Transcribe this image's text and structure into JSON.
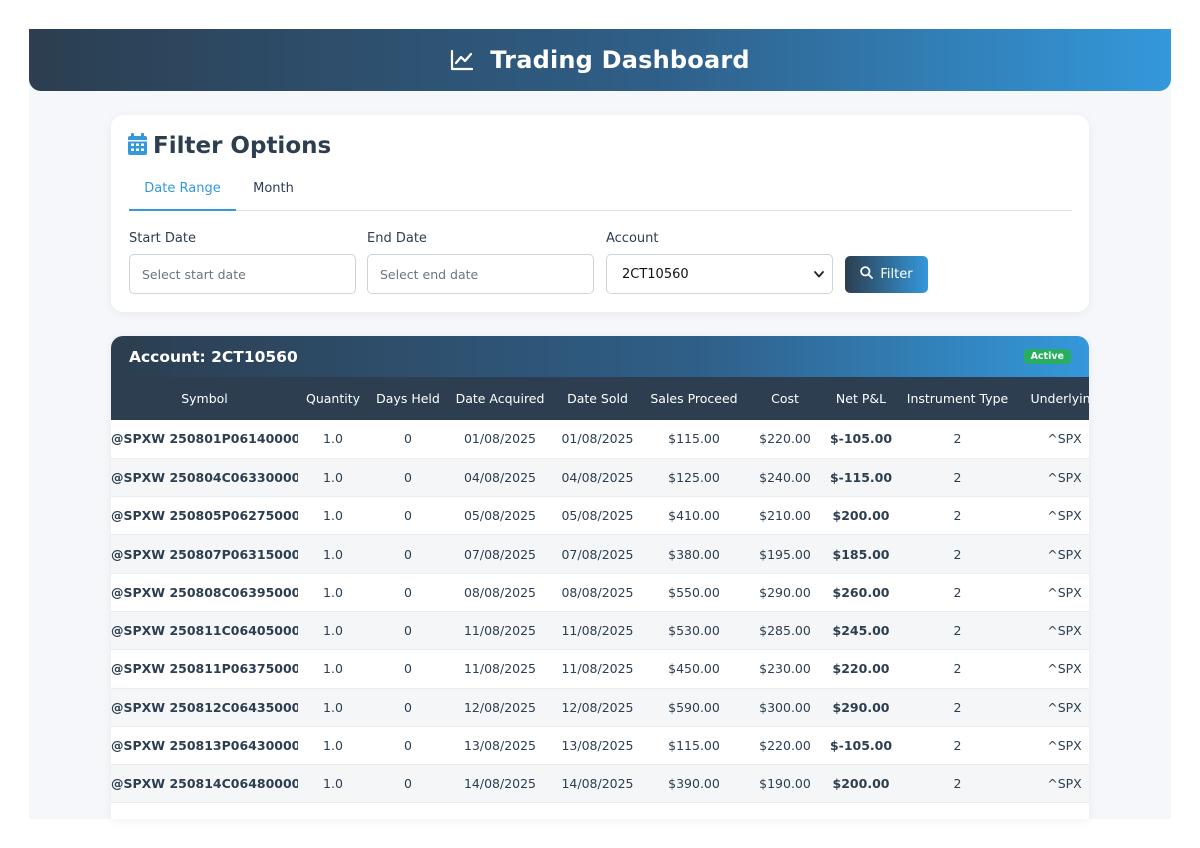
{
  "header": {
    "title": "Trading Dashboard",
    "icon": "chart-line-icon"
  },
  "filter": {
    "title": "Filter Options",
    "icon": "calendar-icon",
    "tabs": [
      {
        "label": "Date Range",
        "active": true
      },
      {
        "label": "Month",
        "active": false
      }
    ],
    "start_date": {
      "label": "Start Date",
      "placeholder": "Select start date",
      "value": ""
    },
    "end_date": {
      "label": "End Date",
      "placeholder": "Select end date",
      "value": ""
    },
    "account": {
      "label": "Account",
      "selected": "2CT10560"
    },
    "filter_button": {
      "label": "Filter",
      "icon": "search-icon"
    }
  },
  "results": {
    "account_title": "Account: 2CT10560",
    "status_badge": "Active",
    "columns": [
      "Symbol",
      "Quantity",
      "Days Held",
      "Date Acquired",
      "Date Sold",
      "Sales Proceed",
      "Cost",
      "Net P&L",
      "Instrument Type",
      "Underlying"
    ],
    "rows": [
      [
        "@SPXW 250801P06140000",
        "1.0",
        "0",
        "01/08/2025",
        "01/08/2025",
        "$115.00",
        "$220.00",
        "$-105.00",
        "2",
        "^SPX"
      ],
      [
        "@SPXW 250804C06330000",
        "1.0",
        "0",
        "04/08/2025",
        "04/08/2025",
        "$125.00",
        "$240.00",
        "$-115.00",
        "2",
        "^SPX"
      ],
      [
        "@SPXW 250805P06275000",
        "1.0",
        "0",
        "05/08/2025",
        "05/08/2025",
        "$410.00",
        "$210.00",
        "$200.00",
        "2",
        "^SPX"
      ],
      [
        "@SPXW 250807P06315000",
        "1.0",
        "0",
        "07/08/2025",
        "07/08/2025",
        "$380.00",
        "$195.00",
        "$185.00",
        "2",
        "^SPX"
      ],
      [
        "@SPXW 250808C06395000",
        "1.0",
        "0",
        "08/08/2025",
        "08/08/2025",
        "$550.00",
        "$290.00",
        "$260.00",
        "2",
        "^SPX"
      ],
      [
        "@SPXW 250811C06405000",
        "1.0",
        "0",
        "11/08/2025",
        "11/08/2025",
        "$530.00",
        "$285.00",
        "$245.00",
        "2",
        "^SPX"
      ],
      [
        "@SPXW 250811P06375000",
        "1.0",
        "0",
        "11/08/2025",
        "11/08/2025",
        "$450.00",
        "$230.00",
        "$220.00",
        "2",
        "^SPX"
      ],
      [
        "@SPXW 250812C06435000",
        "1.0",
        "0",
        "12/08/2025",
        "12/08/2025",
        "$590.00",
        "$300.00",
        "$290.00",
        "2",
        "^SPX"
      ],
      [
        "@SPXW 250813P06430000",
        "1.0",
        "0",
        "13/08/2025",
        "13/08/2025",
        "$115.00",
        "$220.00",
        "$-105.00",
        "2",
        "^SPX"
      ],
      [
        "@SPXW 250814C06480000",
        "1.0",
        "0",
        "14/08/2025",
        "14/08/2025",
        "$390.00",
        "$190.00",
        "$200.00",
        "2",
        "^SPX"
      ]
    ]
  },
  "colors": {
    "primary_dark": "#2c3e50",
    "accent": "#3498db",
    "profit": "#27ae60",
    "loss": "#e74c3c"
  }
}
